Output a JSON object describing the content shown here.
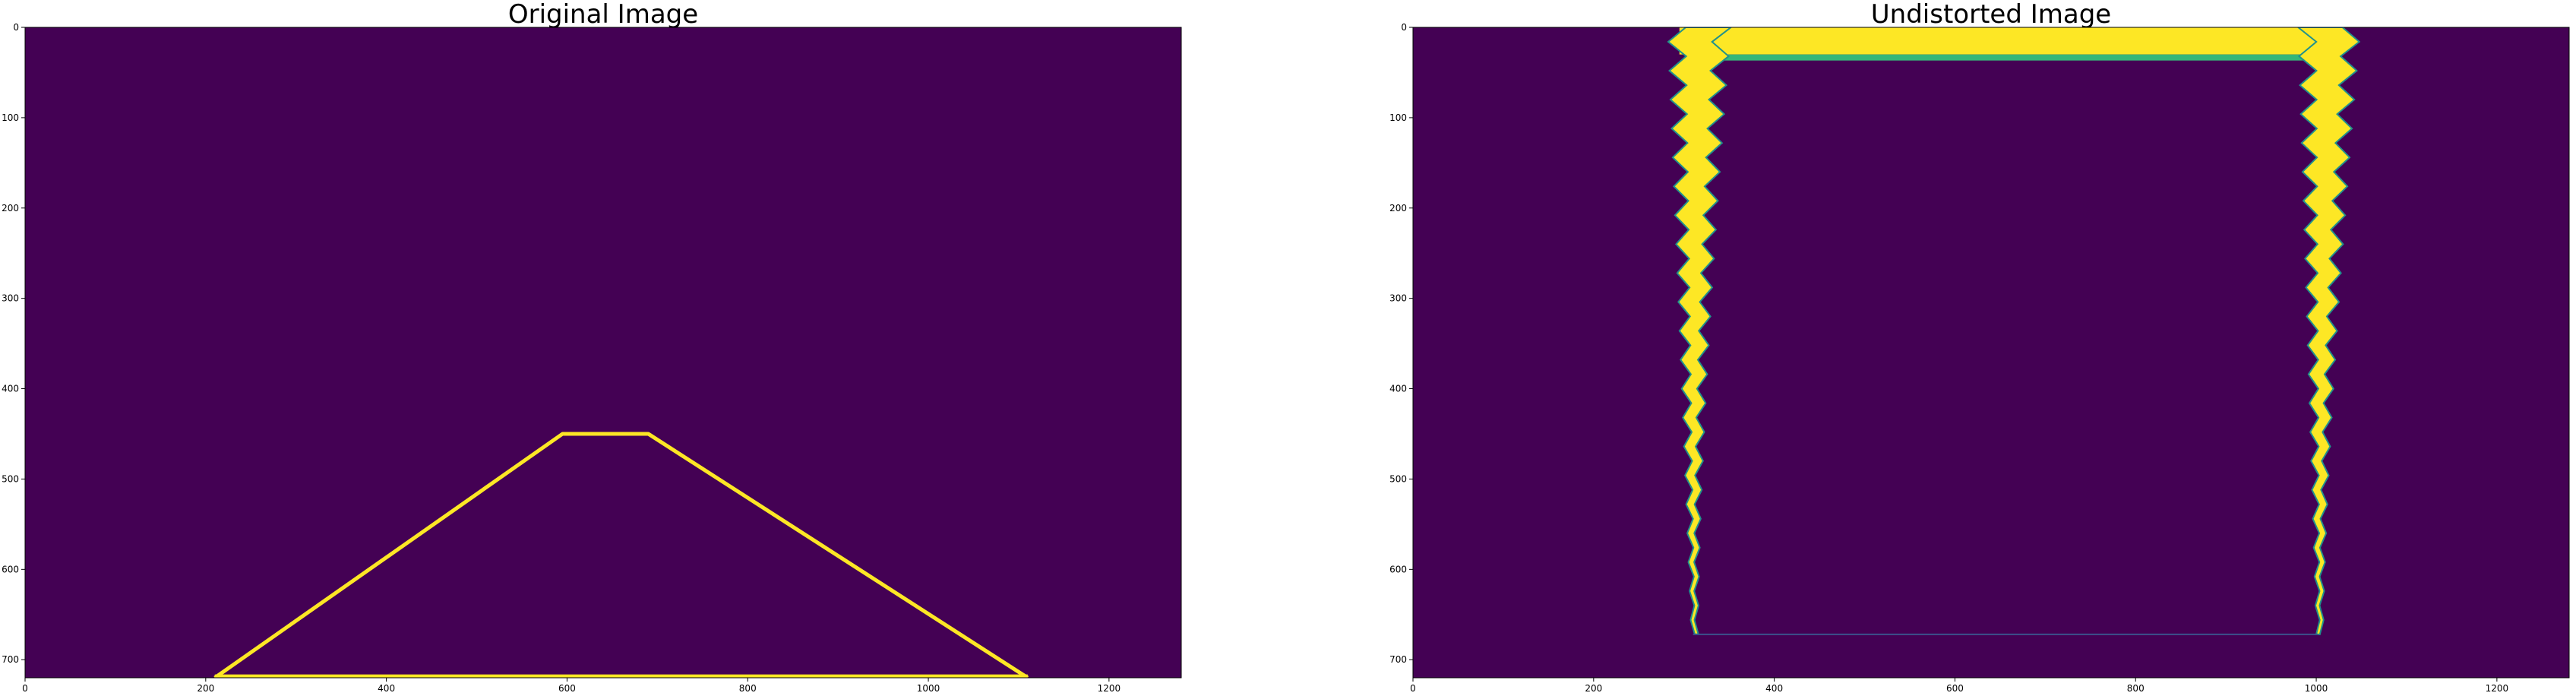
{
  "chart_data": [
    {
      "type": "image",
      "title": "Original Image",
      "colormap": "viridis",
      "background_color": "#440154",
      "line_color": "#fde725",
      "xlim": [
        0,
        1280
      ],
      "ylim": [
        720,
        0
      ],
      "xticks": [
        0,
        200,
        400,
        600,
        800,
        1000,
        1200
      ],
      "yticks": [
        0,
        100,
        200,
        300,
        400,
        500,
        600,
        700
      ],
      "outline": {
        "description_points": [
          [
            210,
            720
          ],
          [
            595,
            450
          ],
          [
            690,
            450
          ],
          [
            1110,
            720
          ]
        ],
        "closed_bottom": true
      }
    },
    {
      "type": "image",
      "title": "Undistorted Image",
      "colormap": "viridis",
      "background_color": "#440154",
      "line_color": "#fde725",
      "xlim": [
        0,
        1280
      ],
      "ylim": [
        720,
        0
      ],
      "xticks": [
        0,
        200,
        400,
        600,
        800,
        1000,
        1200
      ],
      "yticks": [
        0,
        100,
        200,
        300,
        400,
        500,
        600,
        700
      ],
      "warped_outline": {
        "top_band_x": [
          295,
          1030
        ],
        "top_band_y": [
          0,
          30
        ],
        "left_edge_top_x": [
          292,
          338
        ],
        "left_edge_bottom_x": 310,
        "right_edge_top_x": [
          990,
          1035
        ],
        "right_edge_bottom_x": 1002,
        "bottom_line_y": 672
      }
    }
  ]
}
